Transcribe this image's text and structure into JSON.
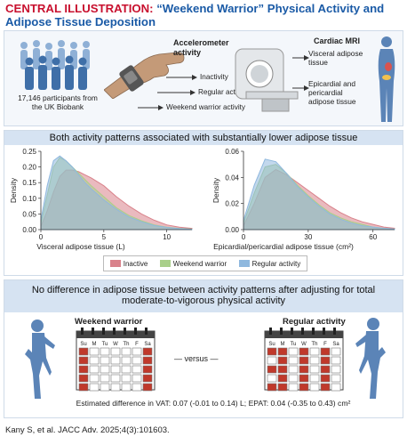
{
  "title": {
    "lead": "CENTRAL ILLUSTRATION:",
    "rest": " “Weekend Warrior” Physical Activity and Adipose Tissue Deposition"
  },
  "top_panel": {
    "participants": "17,146 participants from the UK Biobank",
    "accelerometer_title": "Accelerometer activity",
    "activities": [
      "Inactivity",
      "Regular activity",
      "Weekend warrior activity"
    ],
    "mri_title": "Cardiac MRI",
    "mri_items": [
      "Visceral adipose tissue",
      "Epicardial and pericardial adipose tissue"
    ]
  },
  "middle_panel": {
    "header": "Both activity patterns associated with substantially lower adipose tissue",
    "legend": [
      {
        "label": "Inactive",
        "color": "#d9828b"
      },
      {
        "label": "Weekend warrior",
        "color": "#a9cf8a"
      },
      {
        "label": "Regular activity",
        "color": "#8fb8de"
      }
    ]
  },
  "bottom_panel": {
    "header": "No difference in adipose tissue between activity patterns after adjusting for total moderate-to-vigorous physical activity",
    "left_label": "Weekend warrior",
    "right_label": "Regular activity",
    "versus": "— versus —",
    "days": [
      "Su",
      "M",
      "Tu",
      "W",
      "Th",
      "F",
      "Sa"
    ],
    "estimate": "Estimated difference in VAT: 0.07 (-0.01 to 0.14) L; EPAT: 0.04 (-0.35 to 0.43) cm²"
  },
  "citation": "Kany S, et al. JACC Adv. 2025;4(3):101603.",
  "chart_data": [
    {
      "type": "area",
      "xlabel": "Visceral adipose tissue (L)",
      "ylabel": "Density",
      "xlim": [
        0,
        12
      ],
      "ylim": [
        0,
        0.25
      ],
      "x_ticks": [
        0,
        5,
        10
      ],
      "y_ticks": [
        0.0,
        0.05,
        0.1,
        0.15,
        0.2,
        0.25
      ],
      "y_tick_labels": [
        "0.00",
        "0.05",
        "0.10",
        "0.15",
        "0.20",
        "0.25"
      ],
      "x": [
        0,
        0.5,
        1,
        1.5,
        2,
        2.5,
        3,
        3.5,
        4,
        5,
        6,
        7,
        8,
        9,
        10,
        11,
        12
      ],
      "series": [
        {
          "name": "Inactive",
          "color": "#d9828b",
          "values": [
            0.01,
            0.06,
            0.12,
            0.17,
            0.19,
            0.19,
            0.185,
            0.175,
            0.165,
            0.14,
            0.105,
            0.075,
            0.05,
            0.03,
            0.015,
            0.008,
            0.004
          ]
        },
        {
          "name": "Weekend warrior",
          "color": "#a9cf8a",
          "values": [
            0.02,
            0.11,
            0.2,
            0.23,
            0.22,
            0.2,
            0.18,
            0.16,
            0.14,
            0.105,
            0.07,
            0.045,
            0.028,
            0.015,
            0.008,
            0.004,
            0.002
          ]
        },
        {
          "name": "Regular activity",
          "color": "#8fb8de",
          "values": [
            0.03,
            0.14,
            0.22,
            0.235,
            0.22,
            0.2,
            0.175,
            0.15,
            0.13,
            0.095,
            0.065,
            0.04,
            0.025,
            0.013,
            0.007,
            0.003,
            0.001
          ]
        }
      ]
    },
    {
      "type": "area",
      "xlabel": "Epicardial/pericardial adipose tissue (cm²)",
      "ylabel": "Density",
      "xlim": [
        0,
        70
      ],
      "ylim": [
        0,
        0.06
      ],
      "x_ticks": [
        0,
        30,
        60
      ],
      "y_ticks": [
        0.0,
        0.02,
        0.04,
        0.06
      ],
      "y_tick_labels": [
        "0.00",
        "0.02",
        "0.04",
        "0.06"
      ],
      "x": [
        0,
        5,
        10,
        15,
        20,
        25,
        30,
        35,
        40,
        45,
        50,
        55,
        60,
        65,
        70
      ],
      "series": [
        {
          "name": "Inactive",
          "color": "#d9828b",
          "values": [
            0.003,
            0.02,
            0.04,
            0.046,
            0.042,
            0.036,
            0.03,
            0.024,
            0.018,
            0.013,
            0.009,
            0.006,
            0.004,
            0.002,
            0.001
          ]
        },
        {
          "name": "Weekend warrior",
          "color": "#a9cf8a",
          "values": [
            0.005,
            0.028,
            0.048,
            0.05,
            0.043,
            0.034,
            0.026,
            0.019,
            0.013,
            0.009,
            0.006,
            0.004,
            0.002,
            0.001,
            0.0005
          ]
        },
        {
          "name": "Regular activity",
          "color": "#8fb8de",
          "values": [
            0.007,
            0.034,
            0.054,
            0.052,
            0.043,
            0.033,
            0.025,
            0.018,
            0.012,
            0.008,
            0.005,
            0.003,
            0.002,
            0.001,
            0.0005
          ]
        }
      ]
    }
  ]
}
